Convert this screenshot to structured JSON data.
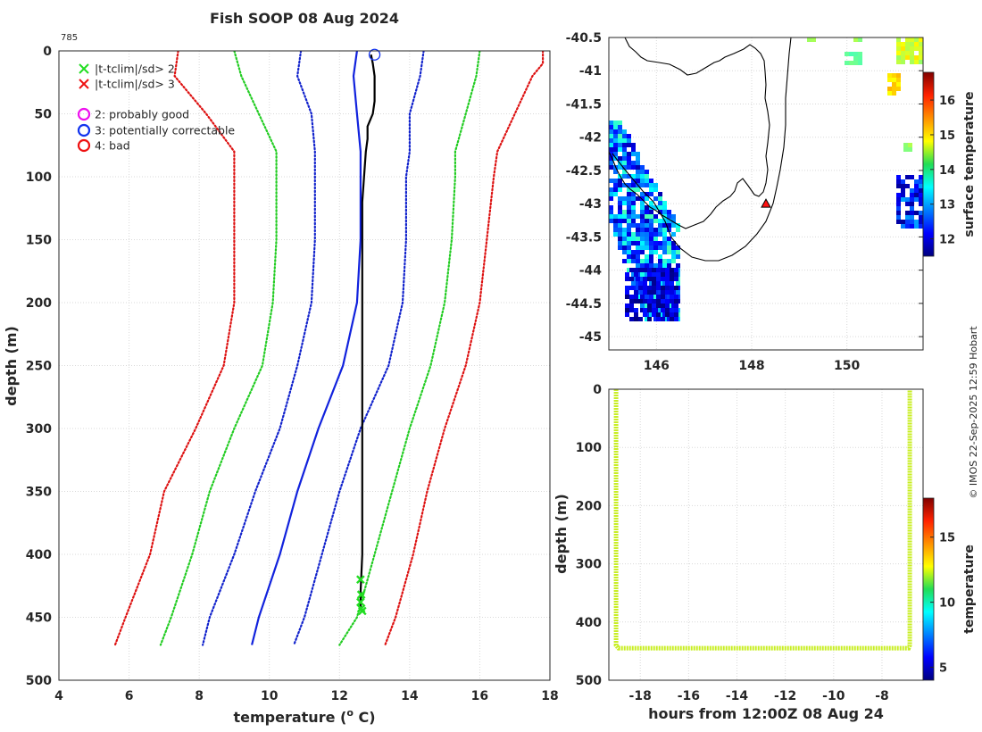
{
  "chart_data": [
    {
      "type": "line",
      "title": "Fish SOOP 08 Aug 2024",
      "xlabel": "temperature (",
      "xlabel_sup": "o",
      "xlabel_end": " C)",
      "ylabel": "depth (m)",
      "xlim": [
        4,
        18
      ],
      "ylim": [
        0,
        500
      ],
      "xticks": [
        4,
        6,
        8,
        10,
        12,
        14,
        16,
        18
      ],
      "yticks": [
        0,
        50,
        100,
        150,
        200,
        250,
        300,
        350,
        400,
        450,
        500
      ],
      "profile_id": "785",
      "legend": [
        {
          "marker": "x",
          "color": "#22dd22",
          "label": "|t-tclim|/sd> 2"
        },
        {
          "marker": "x",
          "color": "#ee1111",
          "label": "|t-tclim|/sd> 3"
        },
        {
          "marker": "o",
          "color": "#ee11ee",
          "label": "2: probably good"
        },
        {
          "marker": "o",
          "color": "#1133ee",
          "label": "3: potentially correctable"
        },
        {
          "marker": "o",
          "color": "#ee1111",
          "label": "4: bad"
        }
      ],
      "series": [
        {
          "name": "clim -3sd",
          "color": "#dd1111",
          "style": "dotted",
          "depth": [
            0,
            20,
            50,
            80,
            100,
            150,
            200,
            250,
            300,
            350,
            400,
            450,
            472
          ],
          "values": [
            7.4,
            7.3,
            8.2,
            9.0,
            9.0,
            9.0,
            9.0,
            8.7,
            7.9,
            7.0,
            6.6,
            5.9,
            5.6
          ]
        },
        {
          "name": "clim -2sd",
          "color": "#22cc22",
          "style": "dotted",
          "depth": [
            0,
            20,
            50,
            80,
            100,
            150,
            200,
            250,
            300,
            350,
            400,
            450,
            472
          ],
          "values": [
            9.0,
            9.2,
            9.7,
            10.2,
            10.2,
            10.2,
            10.1,
            9.8,
            9.0,
            8.3,
            7.8,
            7.2,
            6.9
          ]
        },
        {
          "name": "clim -1sd",
          "color": "#1122cc",
          "style": "dotted",
          "depth": [
            0,
            20,
            50,
            80,
            100,
            150,
            200,
            250,
            300,
            350,
            400,
            450,
            472
          ],
          "values": [
            10.9,
            10.8,
            11.2,
            11.3,
            11.3,
            11.3,
            11.2,
            10.8,
            10.3,
            9.6,
            9.0,
            8.3,
            8.1
          ]
        },
        {
          "name": "clim mean",
          "color": "#1122dd",
          "style": "solid",
          "depth": [
            0,
            20,
            50,
            80,
            100,
            150,
            200,
            250,
            300,
            350,
            400,
            450,
            472
          ],
          "values": [
            12.5,
            12.4,
            12.5,
            12.6,
            12.6,
            12.6,
            12.5,
            12.1,
            11.4,
            10.8,
            10.3,
            9.7,
            9.5
          ]
        },
        {
          "name": "clim +1sd",
          "color": "#1122cc",
          "style": "dotted",
          "depth": [
            0,
            20,
            50,
            80,
            100,
            150,
            200,
            250,
            300,
            350,
            400,
            450,
            472
          ],
          "values": [
            14.4,
            14.3,
            14.0,
            14.0,
            13.9,
            13.9,
            13.8,
            13.4,
            12.6,
            12.0,
            11.5,
            11.0,
            10.7
          ]
        },
        {
          "name": "clim +2sd",
          "color": "#22cc22",
          "style": "dotted",
          "depth": [
            0,
            20,
            50,
            80,
            100,
            150,
            200,
            250,
            300,
            350,
            400,
            450,
            472
          ],
          "values": [
            16.0,
            15.9,
            15.6,
            15.3,
            15.3,
            15.2,
            15.0,
            14.6,
            14.0,
            13.5,
            13.0,
            12.5,
            12.0
          ]
        },
        {
          "name": "clim +3sd",
          "color": "#dd1111",
          "style": "dotted",
          "depth": [
            0,
            10,
            20,
            50,
            80,
            100,
            150,
            200,
            250,
            300,
            350,
            400,
            450,
            472
          ],
          "values": [
            17.8,
            17.8,
            17.5,
            17.0,
            16.5,
            16.4,
            16.2,
            16.0,
            15.6,
            15.0,
            14.5,
            14.1,
            13.6,
            13.3
          ]
        },
        {
          "name": "observed",
          "color": "#000000",
          "style": "solid",
          "depth": [
            3,
            10,
            20,
            30,
            40,
            50,
            60,
            70,
            80,
            100,
            120,
            150,
            200,
            250,
            300,
            350,
            400,
            430,
            445
          ],
          "values": [
            12.9,
            12.95,
            13.0,
            13.0,
            13.0,
            12.95,
            12.8,
            12.8,
            12.75,
            12.7,
            12.65,
            12.65,
            12.65,
            12.65,
            12.65,
            12.65,
            12.65,
            12.6,
            12.6
          ]
        }
      ],
      "flags": [
        {
          "marker": "circle",
          "color": "#1133ee",
          "depth": 3,
          "temp": 13.0
        }
      ],
      "outliers": [
        {
          "marker": "x",
          "color": "#22dd22",
          "depth": [
            420,
            432,
            438,
            443,
            445
          ],
          "temp": [
            12.6,
            12.62,
            12.6,
            12.62,
            12.65
          ]
        }
      ]
    },
    {
      "type": "heatmap",
      "subtype": "map",
      "xlim": [
        145,
        151.6
      ],
      "ylim": [
        -45.2,
        -40.5
      ],
      "xticks": [
        146,
        148,
        150
      ],
      "yticks": [
        -40.5,
        -41,
        -41.5,
        -42,
        -42.5,
        -43,
        -43.5,
        -44,
        -44.5,
        -45
      ],
      "ytick_labels": [
        "-40.5",
        "-41",
        "-41.5",
        "-42",
        "-42.5",
        "-43",
        "-43.5",
        "-44",
        "-44.5",
        "-45"
      ],
      "xtick_labels": [
        "146",
        "148",
        "150"
      ],
      "colorbar": {
        "label": "surface temperature",
        "range": [
          11.5,
          16.8
        ],
        "ticks": [
          12,
          13,
          14,
          15,
          16
        ]
      },
      "marker": {
        "lon": 148.3,
        "lat": -43.0,
        "color": "#ee1111"
      }
    },
    {
      "type": "scatter",
      "xlabel": "hours from 12:00Z 08 Aug 24",
      "ylabel": "depth (m)",
      "xlim": [
        -19.3,
        -6.3
      ],
      "ylim": [
        0,
        500
      ],
      "xticks": [
        -18,
        -16,
        -14,
        -12,
        -10,
        -8
      ],
      "yticks": [
        0,
        100,
        200,
        300,
        400,
        500
      ],
      "colorbar": {
        "label": "temperature",
        "range": [
          4,
          18
        ],
        "ticks": [
          5,
          10,
          15
        ]
      },
      "track_color": "#c8ee22",
      "track": {
        "x": [
          -19.0,
          -19.0,
          -19.0,
          -18.9,
          -6.9,
          -6.85,
          -6.85,
          -6.85
        ],
        "y": [
          0,
          200,
          440,
          445,
          445,
          440,
          200,
          0
        ]
      }
    }
  ],
  "credit": "© IMOS 22-Sep-2025 12:59 Hobart"
}
